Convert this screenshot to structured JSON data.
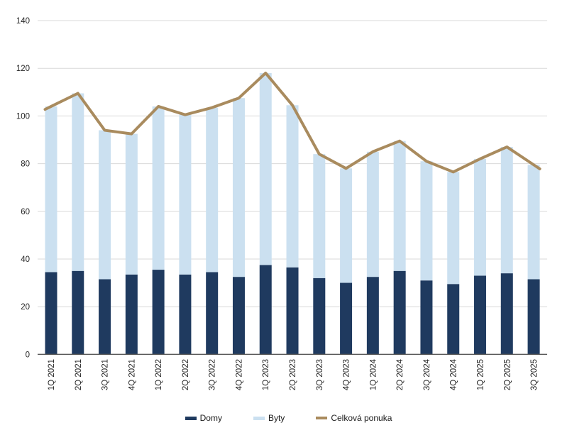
{
  "chart_data": {
    "type": "combo-stacked-bar-line",
    "title": "",
    "xlabel": "",
    "ylabel": "",
    "categories": [
      "1Q 2021",
      "2Q 2021",
      "3Q 2021",
      "4Q 2021",
      "1Q 2022",
      "2Q 2022",
      "3Q 2022",
      "4Q 2022",
      "1Q 2023",
      "2Q 2023",
      "3Q 2023",
      "4Q 2023",
      "1Q 2024",
      "2Q 2024",
      "3Q 2024",
      "4Q 2024",
      "1Q 2025",
      "2Q 2025",
      "3Q 2025"
    ],
    "series": [
      {
        "name": "Domy",
        "type": "bar",
        "stacked": true,
        "color": "#1F3A5F",
        "values": [
          34.5,
          35,
          31.5,
          33.5,
          35.5,
          33.5,
          34.5,
          32.5,
          37.5,
          36.5,
          32,
          30,
          32.5,
          35,
          31,
          29.5,
          33,
          34,
          31.5
        ]
      },
      {
        "name": "Byty",
        "type": "bar",
        "stacked": true,
        "color": "#CBE0F0",
        "values": [
          69.5,
          74.5,
          62.5,
          59,
          68.5,
          67,
          69,
          75,
          80.5,
          68,
          52,
          48,
          52.5,
          54.5,
          50,
          47,
          49,
          53,
          48
        ]
      },
      {
        "name": "Celková ponuka",
        "type": "line",
        "color": "#A98B5E",
        "values": [
          104,
          109.5,
          94,
          92.5,
          104,
          100.5,
          103.5,
          107.5,
          118,
          104.5,
          84,
          78,
          85,
          89.5,
          81,
          76.5,
          82,
          87,
          79.5
        ]
      }
    ],
    "ylim": [
      0,
      140
    ],
    "y_tick_step": 20,
    "y_tick_labels": [
      "0",
      "20",
      "40",
      "60",
      "80",
      "100",
      "120",
      "140"
    ],
    "grid": "horizontal",
    "legend_position": "bottom",
    "colors": {
      "background": "#FFFFFF",
      "gridline": "#D9D9D9",
      "axis_line": "#595959",
      "tick_label": "#262626",
      "legend_text": "#1A1A1A"
    }
  }
}
